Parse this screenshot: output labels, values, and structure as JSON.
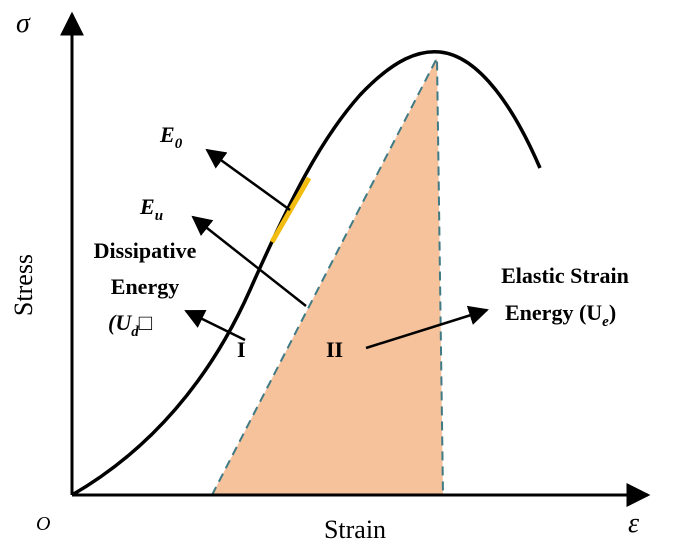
{
  "axes": {
    "y_symbol": "σ",
    "x_symbol": "ε",
    "origin": "O",
    "y_label": "Stress",
    "x_label": "Strain"
  },
  "labels": {
    "e0": {
      "main": "E",
      "sub": "0"
    },
    "eu": {
      "main": "E",
      "sub": "u"
    },
    "dissipative": {
      "line1": "Dissipative",
      "line2": "Energy",
      "line3_pre": "(U",
      "line3_sub": "d",
      "line3_post": "□"
    },
    "region_1": "I",
    "region_2": "II",
    "elastic": {
      "line1": "Elastic Strain",
      "line2_pre": "Energy (U",
      "line2_sub": "e",
      "line2_post": ")"
    }
  }
}
